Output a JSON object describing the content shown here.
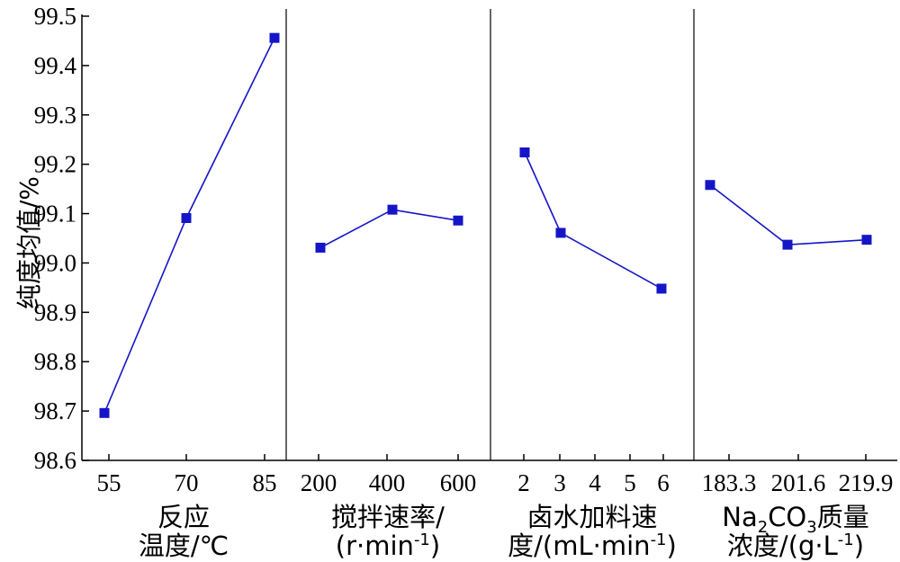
{
  "chart_data": {
    "type": "line",
    "ylabel": "纯度均值/%",
    "ylim": [
      98.6,
      99.5
    ],
    "yticks": [
      "98.6",
      "98.7",
      "98.8",
      "98.9",
      "99.0",
      "99.1",
      "99.2",
      "99.3",
      "99.4",
      "99.5"
    ],
    "grid": false,
    "series_color": "#1515c8",
    "panels": [
      {
        "xlabel_lines": [
          "反应",
          "温度/℃"
        ],
        "categories": [
          "55",
          "70",
          "85"
        ],
        "tick_labels": [
          "55",
          "70",
          "85"
        ],
        "values": [
          98.696,
          99.091,
          99.456
        ]
      },
      {
        "xlabel_lines": [
          "搅拌速率/",
          "(r·min-1)"
        ],
        "categories": [
          "200",
          "400",
          "600"
        ],
        "tick_labels": [
          "200",
          "400",
          "600"
        ],
        "values": [
          99.031,
          99.108,
          99.086
        ]
      },
      {
        "xlabel_lines": [
          "卤水加料速",
          "度/(mL·min-1)"
        ],
        "categories": [
          "2",
          "3",
          "6"
        ],
        "tick_labels": [
          "2",
          "3",
          "4",
          "5",
          "6"
        ],
        "values": [
          99.224,
          99.061,
          98.948
        ]
      },
      {
        "xlabel_lines": [
          "Na2CO3质量",
          "浓度/(g·L-1)"
        ],
        "categories": [
          "183.3",
          "201.6",
          "219.9"
        ],
        "tick_labels": [
          "183.3",
          "201.6",
          "219.9"
        ],
        "values": [
          99.158,
          99.037,
          99.047
        ]
      }
    ]
  }
}
